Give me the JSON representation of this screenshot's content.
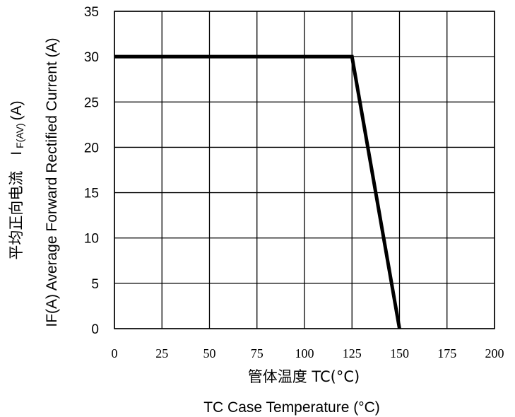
{
  "chart_data": {
    "type": "line",
    "x_ticks": [
      "0",
      "25",
      "50",
      "75",
      "100",
      "125",
      "150",
      "175",
      "200"
    ],
    "y_ticks": [
      "0",
      "5",
      "10",
      "15",
      "20",
      "25",
      "30",
      "35"
    ],
    "xlim": [
      0,
      200
    ],
    "ylim": [
      0,
      35
    ],
    "grid": true,
    "series": [
      {
        "x": [
          0,
          125,
          150
        ],
        "y": [
          30,
          30,
          0
        ],
        "color": "#000000"
      }
    ],
    "xlabel_cn": "管体温度 TC(°C)",
    "xlabel_en": "TC  Case Temperature (°C)",
    "ylabel_cn": "平均正向电流",
    "ylabel_sym_main": "I",
    "ylabel_sym_sub": "F(AV)",
    "ylabel_unit": " (A)",
    "ylabel_en": "IF(A)  Average Forward Rectified Current (A)"
  }
}
